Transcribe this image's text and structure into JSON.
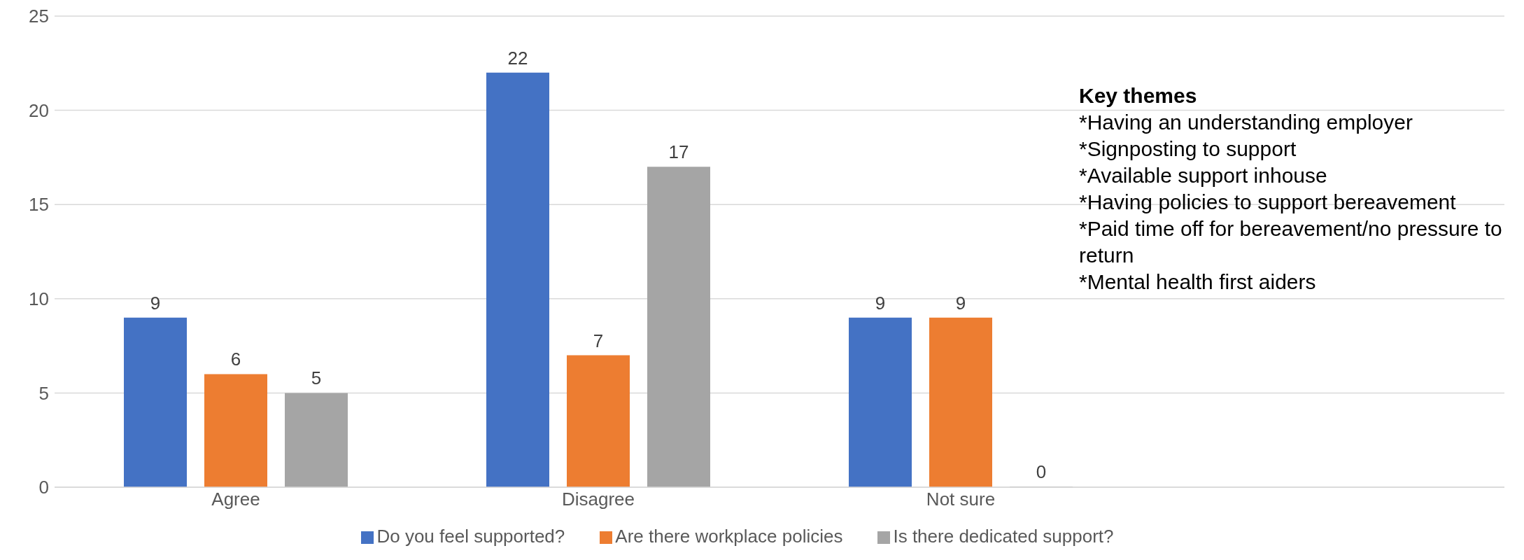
{
  "chart_data": {
    "type": "bar",
    "categories": [
      "Agree",
      "Disagree",
      "Not sure",
      null
    ],
    "series": [
      {
        "name": "Do you feel supported?",
        "color": "#4472c4",
        "values": [
          9,
          22,
          9,
          null
        ]
      },
      {
        "name": "Are there workplace policies",
        "color": "#ed7d31",
        "values": [
          6,
          7,
          9,
          null
        ]
      },
      {
        "name": "Is there dedicated support?",
        "color": "#a5a5a5",
        "values": [
          5,
          17,
          0,
          null
        ]
      }
    ],
    "ylim": [
      0,
      25
    ],
    "yticks": [
      0,
      5,
      10,
      15,
      20,
      25
    ],
    "grid": "y",
    "legend": "bottom",
    "data_labels": true,
    "annotations": [
      "Key themes",
      "*Having an understanding employer",
      "*Signposting to support",
      "*Available support inhouse",
      "*Having policies to support bereavement",
      "*Paid time off for bereavement/no pressure to return",
      "*Mental health first aiders"
    ]
  }
}
